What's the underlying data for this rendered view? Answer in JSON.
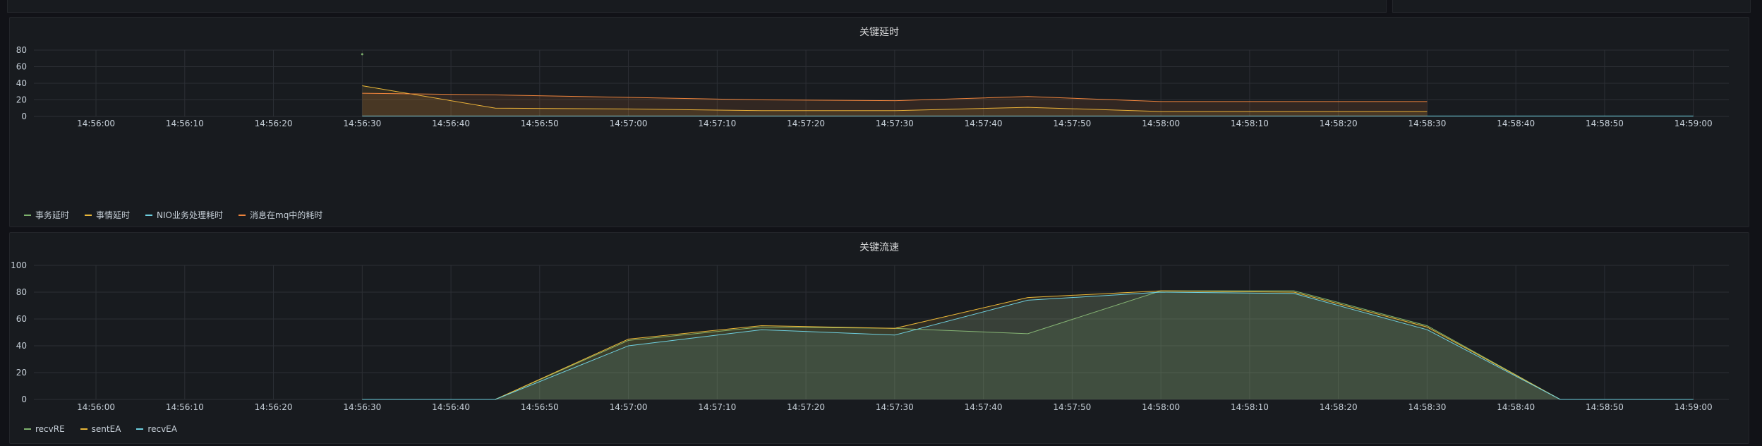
{
  "chart_data": [
    {
      "type": "area",
      "title": "关键延时",
      "ylim": [
        0,
        80
      ],
      "yticks": [
        "0",
        "20",
        "40",
        "60",
        "80"
      ],
      "xticks": [
        "14:56:00",
        "14:56:10",
        "14:56:20",
        "14:56:30",
        "14:56:40",
        "14:56:50",
        "14:57:00",
        "14:57:10",
        "14:57:20",
        "14:57:30",
        "14:57:40",
        "14:57:50",
        "14:58:00",
        "14:58:10",
        "14:58:20",
        "14:58:30",
        "14:58:40",
        "14:58:50",
        "14:59:00"
      ],
      "xrange": [
        "14:55:53",
        "14:59:04"
      ],
      "grid": true,
      "legend_position": "bottom-left",
      "series": [
        {
          "name": "事务延时",
          "color": "#7eb26d",
          "fill": false,
          "x": [
            "14:56:30"
          ],
          "y": [
            75
          ]
        },
        {
          "name": "事情延时",
          "color": "#eab839",
          "fill": true,
          "x": [
            "14:56:30",
            "14:56:45",
            "14:57:00",
            "14:57:15",
            "14:57:30",
            "14:57:45",
            "14:58:00",
            "14:58:15",
            "14:58:30"
          ],
          "y": [
            37,
            10,
            9,
            7,
            7,
            11,
            6,
            6,
            6
          ]
        },
        {
          "name": "NIO业务处理耗时",
          "color": "#6ed0e0",
          "fill": false,
          "x": [
            "14:56:30",
            "14:57:00",
            "14:57:30",
            "14:58:00",
            "14:58:30",
            "14:59:00"
          ],
          "y": [
            0.5,
            0.5,
            0.5,
            0.5,
            0.5,
            0.5
          ]
        },
        {
          "name": "消息在mq中的耗时",
          "color": "#ef843c",
          "fill": true,
          "x": [
            "14:56:30",
            "14:56:45",
            "14:57:00",
            "14:57:15",
            "14:57:30",
            "14:57:45",
            "14:58:00",
            "14:58:15",
            "14:58:30"
          ],
          "y": [
            28,
            26,
            23,
            20,
            19,
            24,
            18,
            18,
            18
          ]
        }
      ]
    },
    {
      "type": "area",
      "title": "关键流速",
      "ylim": [
        0,
        100
      ],
      "yticks": [
        "0",
        "20",
        "40",
        "60",
        "80",
        "100"
      ],
      "xticks": [
        "14:56:00",
        "14:56:10",
        "14:56:20",
        "14:56:30",
        "14:56:40",
        "14:56:50",
        "14:57:00",
        "14:57:10",
        "14:57:20",
        "14:57:30",
        "14:57:40",
        "14:57:50",
        "14:58:00",
        "14:58:10",
        "14:58:20",
        "14:58:30",
        "14:58:40",
        "14:58:50",
        "14:59:00"
      ],
      "xrange": [
        "14:55:53",
        "14:59:04"
      ],
      "grid": true,
      "legend_position": "bottom-left",
      "series": [
        {
          "name": "recvRE",
          "color": "#7eb26d",
          "fill": true,
          "x": [
            "14:56:30",
            "14:56:45",
            "14:57:00",
            "14:57:15",
            "14:57:30",
            "14:57:45",
            "14:58:00",
            "14:58:15",
            "14:58:30",
            "14:58:45",
            "14:59:00"
          ],
          "y": [
            0,
            0,
            44,
            54,
            53,
            49,
            81,
            81,
            55,
            0,
            0
          ]
        },
        {
          "name": "sentEA",
          "color": "#eab839",
          "fill": true,
          "x": [
            "14:56:30",
            "14:56:45",
            "14:57:00",
            "14:57:15",
            "14:57:30",
            "14:57:45",
            "14:58:00",
            "14:58:15",
            "14:58:30",
            "14:58:45",
            "14:59:00"
          ],
          "y": [
            0,
            0,
            45,
            55,
            53,
            76,
            81,
            80,
            54,
            0,
            0
          ]
        },
        {
          "name": "recvEA",
          "color": "#6ed0e0",
          "fill": true,
          "x": [
            "14:56:30",
            "14:56:45",
            "14:57:00",
            "14:57:15",
            "14:57:30",
            "14:57:45",
            "14:58:00",
            "14:58:15",
            "14:58:30",
            "14:58:45",
            "14:59:00"
          ],
          "y": [
            0,
            0,
            40,
            52,
            48,
            74,
            80,
            79,
            52,
            0,
            0
          ]
        }
      ]
    }
  ]
}
